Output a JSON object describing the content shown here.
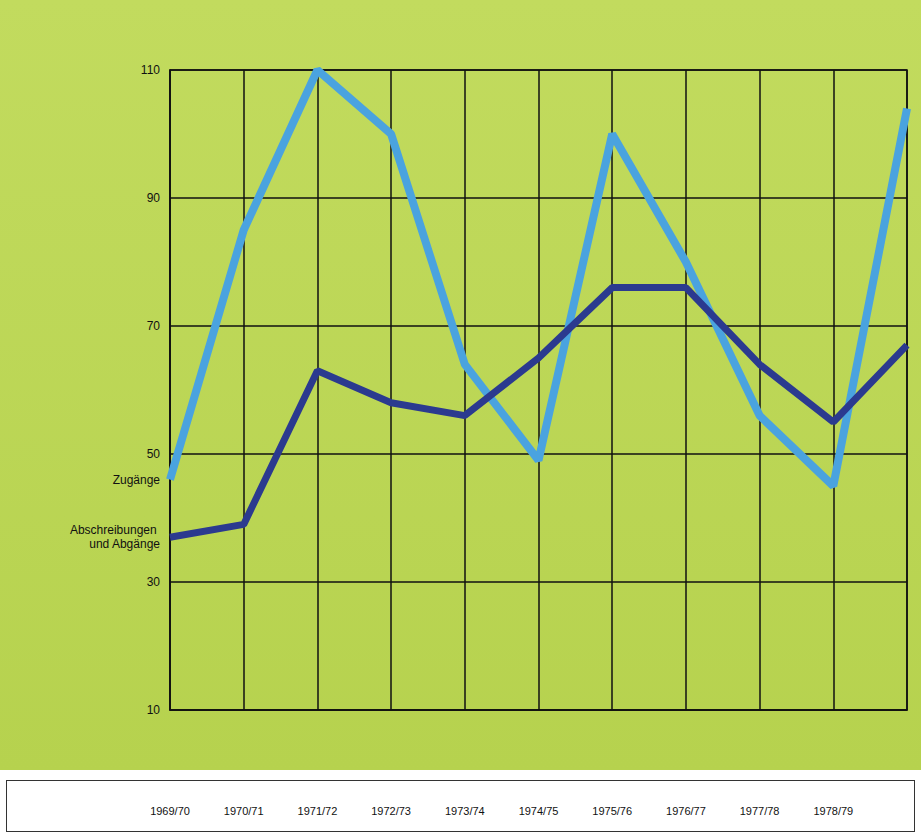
{
  "chart_data": {
    "type": "line",
    "categories": [
      "1969/70",
      "1970/71",
      "1971/72",
      "1972/73",
      "1973/74",
      "1974/75",
      "1975/76",
      "1976/77",
      "1977/78",
      "1978/79",
      null
    ],
    "series": [
      {
        "name": "Zugänge",
        "color": "#4aa3df",
        "values": [
          46,
          85,
          110,
          100,
          64,
          49,
          100,
          80,
          56,
          45,
          104
        ]
      },
      {
        "name": "Abschreibungen und Abgänge",
        "color": "#2b3a8f",
        "values": [
          37,
          39,
          63,
          58,
          56,
          65,
          76,
          76,
          64,
          55,
          67
        ]
      }
    ],
    "ylim": [
      10,
      110
    ],
    "yticks": [
      10,
      30,
      50,
      70,
      90,
      110
    ],
    "grid": true
  }
}
